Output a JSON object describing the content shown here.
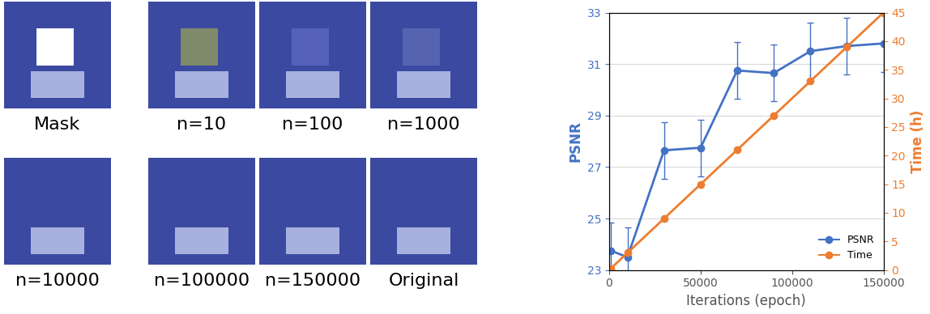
{
  "image_panels": {
    "labels": [
      "Mask",
      "n=10",
      "n=100",
      "n=1000",
      "n=10000",
      "n=100000",
      "n=150000",
      "Original"
    ]
  },
  "chart_data": {
    "type": "line",
    "x": [
      1000,
      10000,
      30000,
      50000,
      70000,
      90000,
      110000,
      130000,
      150000
    ],
    "xlabel": "Iterations (epoch)",
    "ylabel": "PSNR",
    "y2label": "Time (h)",
    "xlim": [
      0,
      150000
    ],
    "xticks": [
      0,
      50000,
      100000,
      150000
    ],
    "ylim": [
      23,
      33
    ],
    "yticks": [
      23,
      25,
      27,
      29,
      31,
      33
    ],
    "y2lim": [
      0,
      45
    ],
    "y2ticks": [
      0,
      5,
      10,
      15,
      20,
      25,
      30,
      35,
      40,
      45
    ],
    "grid": true,
    "legend": "lower right",
    "series": [
      {
        "name": "PSNR",
        "color": "#4472c4",
        "marker": "o",
        "line_style": "solid",
        "values": [
          23.75,
          23.5,
          27.65,
          27.75,
          30.75,
          30.65,
          31.5,
          31.7,
          31.8
        ],
        "errors": [
          1.1,
          1.15,
          1.1,
          1.1,
          1.1,
          1.1,
          1.1,
          1.1,
          1.1
        ]
      },
      {
        "name": "Time",
        "color": "#ed7d31",
        "marker": "o",
        "line_style": "solid",
        "axis": "y2",
        "values": [
          0.3,
          3,
          9,
          15,
          21,
          27,
          33,
          39,
          45
        ]
      }
    ]
  }
}
